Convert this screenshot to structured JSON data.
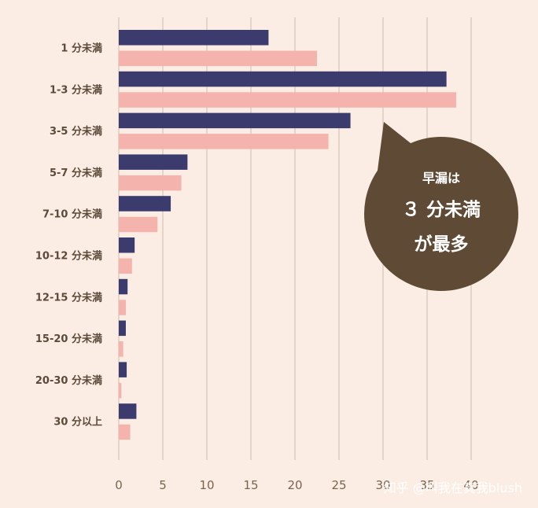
{
  "chart_data": {
    "type": "bar",
    "orientation": "horizontal",
    "categories": [
      "1 分未満",
      "1-3 分未満",
      "3-5 分未満",
      "5-7 分未満",
      "7-10 分未満",
      "10-12 分未満",
      "12-15 分未満",
      "15-20 分未満",
      "20-30 分未満",
      "30 分以上"
    ],
    "series": [
      {
        "color": "#3b3b6e",
        "values": [
          17,
          37.2,
          26.3,
          7.8,
          5.9,
          1.8,
          1.0,
          0.8,
          0.9,
          2.0
        ]
      },
      {
        "color": "#f4b3ac",
        "values": [
          22.5,
          38.3,
          23.8,
          7.1,
          4.4,
          1.5,
          0.8,
          0.5,
          0.3,
          1.3
        ]
      }
    ],
    "xticks": [
      0,
      5,
      10,
      15,
      20,
      25,
      30,
      35,
      40
    ],
    "xtick_labels": [
      "0",
      "5",
      "10",
      "15",
      "20",
      "25",
      "30",
      "35",
      "40"
    ],
    "xlim": [
      0,
      40
    ],
    "grid": true,
    "title": "",
    "xlabel": "",
    "ylabel": ""
  },
  "callout": {
    "line1": "早漏は",
    "line2": "３ 分未満",
    "line3": "が最多",
    "color": "#5f4a35"
  },
  "watermark": "知乎 @叫我在真我blush"
}
